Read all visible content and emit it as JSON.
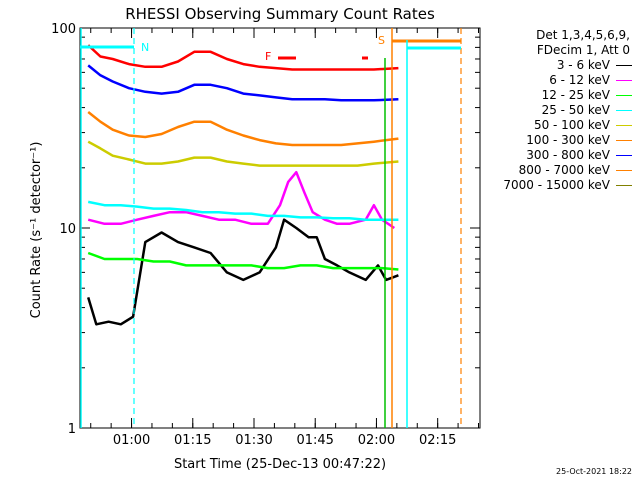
{
  "chart_data": {
    "type": "line",
    "title": "RHESSI Observing Summary Count Rates",
    "xlabel": "Start Time (25-Dec-13 00:47:22)",
    "ylabel": "Count Rate (s⁻¹ detector⁻¹)",
    "yscale": "log",
    "ylim": [
      1,
      100
    ],
    "xlim_minutes": [
      0,
      98
    ],
    "y_ticks": [
      {
        "value": 1,
        "label": "1"
      },
      {
        "value": 10,
        "label": "10"
      },
      {
        "value": 100,
        "label": "100"
      }
    ],
    "x_ticks": [
      {
        "minute": 12.63,
        "label": "01:00"
      },
      {
        "minute": 27.63,
        "label": "01:15"
      },
      {
        "minute": 42.63,
        "label": "01:30"
      },
      {
        "minute": 57.63,
        "label": "01:45"
      },
      {
        "minute": 72.63,
        "label": "02:00"
      },
      {
        "minute": 87.63,
        "label": "02:15"
      }
    ],
    "legend_header": [
      "Det 1,3,4,5,6,9,",
      "FDecim 1, Att 0"
    ],
    "series": [
      {
        "name": "3 - 6 keV",
        "color": "#000000",
        "points": [
          [
            2,
            4.5
          ],
          [
            4,
            3.3
          ],
          [
            7,
            3.4
          ],
          [
            10,
            3.3
          ],
          [
            13,
            3.6
          ],
          [
            16,
            8.5
          ],
          [
            20,
            9.5
          ],
          [
            24,
            8.5
          ],
          [
            28,
            8
          ],
          [
            32,
            7.5
          ],
          [
            36,
            6
          ],
          [
            40,
            5.5
          ],
          [
            44,
            6
          ],
          [
            48,
            8
          ],
          [
            50,
            11
          ],
          [
            53,
            10
          ],
          [
            56,
            9
          ],
          [
            58,
            9
          ],
          [
            60,
            7
          ],
          [
            63,
            6.5
          ],
          [
            66,
            6
          ],
          [
            70,
            5.5
          ],
          [
            73,
            6.5
          ],
          [
            75,
            5.5
          ],
          [
            78,
            5.8
          ]
        ]
      },
      {
        "name": "6 - 12 keV",
        "color": "#ff00ff",
        "points": [
          [
            2,
            11
          ],
          [
            6,
            10.5
          ],
          [
            10,
            10.5
          ],
          [
            14,
            11
          ],
          [
            18,
            11.5
          ],
          [
            22,
            12
          ],
          [
            26,
            12
          ],
          [
            30,
            11.5
          ],
          [
            34,
            11
          ],
          [
            38,
            11
          ],
          [
            42,
            10.5
          ],
          [
            46,
            10.5
          ],
          [
            49,
            13
          ],
          [
            51,
            17
          ],
          [
            53,
            19
          ],
          [
            55,
            15
          ],
          [
            57,
            12
          ],
          [
            60,
            11
          ],
          [
            63,
            10.5
          ],
          [
            66,
            10.5
          ],
          [
            70,
            11
          ],
          [
            72,
            13
          ],
          [
            74,
            11
          ],
          [
            77,
            10
          ]
        ]
      },
      {
        "name": "12 - 25 keV",
        "color": "#00ff00",
        "points": [
          [
            2,
            7.5
          ],
          [
            6,
            7
          ],
          [
            10,
            7
          ],
          [
            14,
            7
          ],
          [
            18,
            6.8
          ],
          [
            22,
            6.8
          ],
          [
            26,
            6.5
          ],
          [
            30,
            6.5
          ],
          [
            34,
            6.5
          ],
          [
            38,
            6.5
          ],
          [
            42,
            6.5
          ],
          [
            46,
            6.3
          ],
          [
            50,
            6.3
          ],
          [
            54,
            6.5
          ],
          [
            58,
            6.5
          ],
          [
            62,
            6.3
          ],
          [
            66,
            6.3
          ],
          [
            70,
            6.3
          ],
          [
            74,
            6.3
          ],
          [
            78,
            6.2
          ]
        ]
      },
      {
        "name": "25 - 50 keV",
        "color": "#00ffff",
        "points": [
          [
            2,
            13.5
          ],
          [
            6,
            13
          ],
          [
            10,
            13
          ],
          [
            14,
            12.8
          ],
          [
            18,
            12.5
          ],
          [
            22,
            12.5
          ],
          [
            26,
            12.3
          ],
          [
            30,
            12
          ],
          [
            34,
            12
          ],
          [
            38,
            11.8
          ],
          [
            42,
            11.8
          ],
          [
            46,
            11.5
          ],
          [
            50,
            11.5
          ],
          [
            54,
            11.3
          ],
          [
            58,
            11.3
          ],
          [
            62,
            11.2
          ],
          [
            66,
            11.2
          ],
          [
            70,
            11
          ],
          [
            74,
            11
          ],
          [
            78,
            11
          ]
        ]
      },
      {
        "name": "50 - 100 keV",
        "color": "#cccc00",
        "points": [
          [
            2,
            27
          ],
          [
            5,
            25
          ],
          [
            8,
            23
          ],
          [
            12,
            22
          ],
          [
            16,
            21
          ],
          [
            20,
            21
          ],
          [
            24,
            21.5
          ],
          [
            28,
            22.5
          ],
          [
            32,
            22.5
          ],
          [
            36,
            21.5
          ],
          [
            40,
            21
          ],
          [
            44,
            20.5
          ],
          [
            48,
            20.5
          ],
          [
            52,
            20.5
          ],
          [
            56,
            20.5
          ],
          [
            60,
            20.5
          ],
          [
            64,
            20.5
          ],
          [
            68,
            20.5
          ],
          [
            72,
            21
          ],
          [
            78,
            21.5
          ]
        ]
      },
      {
        "name": "100 - 300 keV",
        "color": "#ff8000",
        "points": [
          [
            2,
            38
          ],
          [
            5,
            34
          ],
          [
            8,
            31
          ],
          [
            12,
            29
          ],
          [
            16,
            28.5
          ],
          [
            20,
            29.5
          ],
          [
            24,
            32
          ],
          [
            28,
            34
          ],
          [
            32,
            34
          ],
          [
            36,
            31
          ],
          [
            40,
            29
          ],
          [
            44,
            27.5
          ],
          [
            48,
            26.5
          ],
          [
            52,
            26
          ],
          [
            56,
            26
          ],
          [
            60,
            26
          ],
          [
            64,
            26
          ],
          [
            68,
            26.5
          ],
          [
            72,
            27
          ],
          [
            78,
            28
          ]
        ]
      },
      {
        "name": "300 - 800 keV",
        "color": "#0000ff",
        "points": [
          [
            2,
            65
          ],
          [
            5,
            58
          ],
          [
            8,
            54
          ],
          [
            12,
            50
          ],
          [
            16,
            48
          ],
          [
            20,
            47
          ],
          [
            24,
            48
          ],
          [
            28,
            52
          ],
          [
            32,
            52
          ],
          [
            36,
            50
          ],
          [
            40,
            47
          ],
          [
            44,
            46
          ],
          [
            48,
            45
          ],
          [
            52,
            44
          ],
          [
            56,
            44
          ],
          [
            60,
            44
          ],
          [
            64,
            43.5
          ],
          [
            68,
            43.5
          ],
          [
            72,
            43.5
          ],
          [
            78,
            44
          ]
        ]
      },
      {
        "name": "800 - 7000 keV",
        "color": "#ff0000",
        "points": [
          [
            2,
            82
          ],
          [
            5,
            72
          ],
          [
            8,
            70
          ],
          [
            12,
            66
          ],
          [
            16,
            64
          ],
          [
            20,
            64
          ],
          [
            24,
            68
          ],
          [
            28,
            76
          ],
          [
            32,
            76
          ],
          [
            36,
            70
          ],
          [
            40,
            66
          ],
          [
            44,
            64
          ],
          [
            48,
            63
          ],
          [
            52,
            62
          ],
          [
            56,
            62
          ],
          [
            60,
            62
          ],
          [
            64,
            62
          ],
          [
            68,
            62
          ],
          [
            72,
            62
          ],
          [
            78,
            63
          ]
        ]
      },
      {
        "name": "7000 - 15000 keV",
        "color": "#808000",
        "points": []
      }
    ],
    "annotations": {
      "n_label": "N",
      "f_label": "F",
      "s_label": "S"
    }
  },
  "footer": {
    "timestamp": "25-Oct-2021 18:22"
  }
}
